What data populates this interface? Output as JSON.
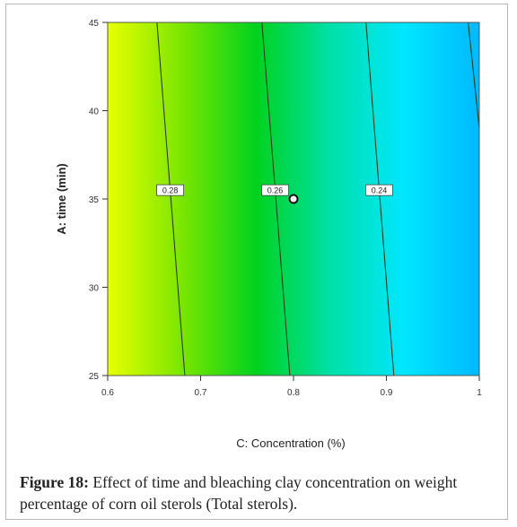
{
  "chart_data": {
    "type": "heatmap",
    "subtype": "contour",
    "xlabel": "C: Concentration (%)",
    "ylabel": "A: time (min)",
    "xlim": [
      0.6,
      1.0
    ],
    "ylim": [
      25,
      45
    ],
    "x_ticks": [
      "0.6",
      "0.7",
      "0.8",
      "0.9",
      "1"
    ],
    "y_ticks": [
      "25",
      "30",
      "35",
      "40",
      "45"
    ],
    "color_scale": [
      "#e8ff00",
      "#7ae600",
      "#00d21e",
      "#00e0a8",
      "#00e6ff",
      "#00b8ff"
    ],
    "contours": [
      {
        "label": "0.28",
        "points": [
          [
            0.653,
            45
          ],
          [
            0.683,
            25
          ]
        ]
      },
      {
        "label": "0.26",
        "points": [
          [
            0.766,
            45
          ],
          [
            0.796,
            25
          ]
        ]
      },
      {
        "label": "0.24",
        "points": [
          [
            0.878,
            45
          ],
          [
            0.908,
            25
          ]
        ]
      },
      {
        "label": "",
        "points": [
          [
            0.988,
            45
          ],
          [
            1.0,
            39
          ]
        ]
      }
    ],
    "contour_label_y": 35.5,
    "design_point": {
      "x": 0.8,
      "y": 35
    }
  },
  "caption": {
    "label": "Figure 18:",
    "text": " Effect of time and bleaching clay concentration on weight percentage of corn oil sterols (Total sterols)."
  }
}
